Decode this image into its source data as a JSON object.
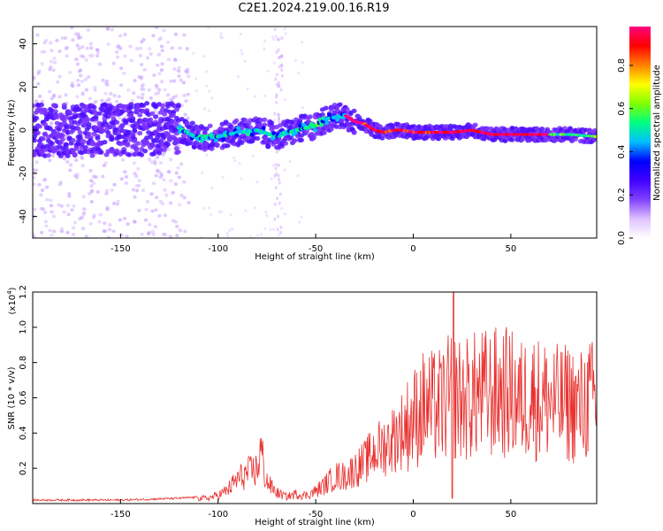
{
  "title": "C2E1.2024.219.00.16.R19",
  "chart_data": [
    {
      "type": "heatmap",
      "xlabel": "Height of straight line (km)",
      "ylabel": "Frequency (Hz)",
      "xlim": [
        -195,
        94
      ],
      "ylim": [
        -50,
        48
      ],
      "xticks": [
        -150,
        -100,
        -50,
        0,
        50
      ],
      "xtick_labels": [
        "-150",
        "-100",
        "-50",
        "0",
        "50"
      ],
      "yticks": [
        -40,
        -20,
        0,
        20,
        40
      ],
      "ytick_labels": [
        "-40",
        "-20",
        "0",
        "20",
        "40"
      ],
      "ridge": {
        "x": [
          -195,
          -150,
          -120,
          -110,
          -100,
          -90,
          -80,
          -70,
          -60,
          -50,
          -45,
          -40,
          -35,
          -30,
          -25,
          -20,
          -15,
          -10,
          -5,
          0,
          10,
          20,
          30,
          40,
          50,
          60,
          70,
          80,
          94
        ],
        "y": [
          0,
          0,
          1,
          -4,
          -3,
          -1,
          0,
          -3,
          0,
          2,
          5,
          6,
          7,
          4,
          3,
          0,
          -1,
          0,
          0,
          -1,
          -1,
          -1,
          0,
          -2,
          -2,
          -2,
          -2,
          -2,
          -3
        ]
      },
      "colorbar": {
        "label": "Normalized spectral amplitude",
        "ticks": [
          0.0,
          0.2,
          0.4,
          0.6,
          0.8
        ],
        "tick_labels": [
          "0.0",
          "0.2",
          "0.4",
          "0.6",
          "0.8"
        ],
        "colors": [
          "#ffffff",
          "#e0c0ff",
          "#8040ff",
          "#4000ff",
          "#0000ff",
          "#00c0ff",
          "#00ff80",
          "#80ff00",
          "#ffff00",
          "#ff8000",
          "#ff0000",
          "#ff0080"
        ]
      }
    },
    {
      "type": "line",
      "xlabel": "Height of straight line (km)",
      "ylabel": "SNR (10 * v/v)",
      "yscale_label": "(x10",
      "yscale_exp": "4",
      "yscale_close": ")",
      "xlim": [
        -195,
        94
      ],
      "ylim": [
        0,
        1.2
      ],
      "xticks": [
        -150,
        -100,
        -50,
        0,
        50
      ],
      "xtick_labels": [
        "-150",
        "-100",
        "-50",
        "0",
        "50"
      ],
      "yticks": [
        0.2,
        0.4,
        0.6,
        0.8,
        1.0,
        1.2
      ],
      "ytick_labels": [
        "0.2",
        "0.4",
        "0.6",
        "0.8",
        "1.0",
        "1.2"
      ],
      "color": "#e8312f",
      "envelope": {
        "x": [
          -195,
          -150,
          -120,
          -105,
          -100,
          -95,
          -90,
          -85,
          -80,
          -78,
          -76,
          -74,
          -70,
          -65,
          -60,
          -55,
          -50,
          -45,
          -40,
          -35,
          -30,
          -25,
          -20,
          -15,
          -10,
          -5,
          0,
          5,
          10,
          15,
          20,
          25,
          30,
          35,
          40,
          45,
          50,
          55,
          60,
          65,
          70,
          75,
          80,
          85,
          90,
          94
        ],
        "y": [
          0.02,
          0.02,
          0.03,
          0.04,
          0.06,
          0.1,
          0.18,
          0.22,
          0.25,
          0.4,
          0.2,
          0.14,
          0.08,
          0.05,
          0.07,
          0.06,
          0.09,
          0.14,
          0.2,
          0.2,
          0.25,
          0.3,
          0.38,
          0.42,
          0.48,
          0.55,
          0.62,
          0.7,
          0.7,
          0.72,
          0.8,
          0.75,
          0.78,
          0.8,
          0.8,
          0.82,
          0.8,
          0.75,
          0.8,
          0.76,
          0.76,
          0.72,
          0.74,
          0.7,
          0.76,
          0.74
        ]
      }
    }
  ]
}
